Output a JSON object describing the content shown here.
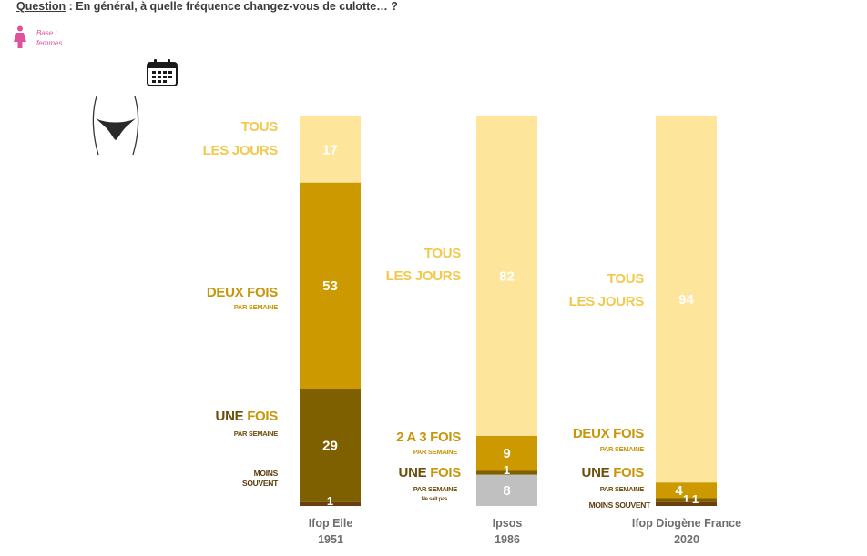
{
  "header": {
    "question_label": "Question",
    "question_text": " : En général, à quelle fréquence changez-vous de culotte… ?",
    "base_line1": "Base :",
    "base_line2": "femmes"
  },
  "icons": [
    "woman-icon",
    "calendar-icon",
    "underwear-icon"
  ],
  "labels": {
    "tous": "TOUS",
    "les_jours": "LES JOURS",
    "deux_fois": "DEUX FOIS",
    "par_semaine": "PAR SEMAINE",
    "une": "UNE ",
    "fois": "FOIS",
    "moins": "MOINS",
    "souvent": "SOUVENT",
    "moins_souvent": "MOINS SOUVENT",
    "deux_trois_fois": "2 A 3 FOIS",
    "ne_sait_pas": "Ne sait pas"
  },
  "colors": {
    "tous_les_jours": "#fde59b",
    "deux_fois": "#cc9900",
    "une_fois": "#7f6000",
    "moins_souvent": "#6b3f0f",
    "ne_sait_pas": "#c0c0c0"
  },
  "chart_data": {
    "type": "bar",
    "stacked": true,
    "title": "",
    "categories": [
      {
        "line1": "Ifop Elle",
        "line2": "1951"
      },
      {
        "line1": "Ipsos",
        "line2": "1986"
      },
      {
        "line1": "Ifop Diogène France",
        "line2": "2020"
      }
    ],
    "series": [
      {
        "name": "Tous les jours",
        "values": [
          17,
          82,
          94
        ]
      },
      {
        "name": "Deux fois par semaine",
        "values": [
          53,
          null,
          4
        ]
      },
      {
        "name": "2 à 3 fois par semaine",
        "values": [
          null,
          9,
          null
        ]
      },
      {
        "name": "Une fois par semaine",
        "values": [
          29,
          1,
          1
        ]
      },
      {
        "name": "Moins souvent",
        "values": [
          1,
          null,
          1
        ]
      },
      {
        "name": "Ne sait pas",
        "values": [
          null,
          8,
          null
        ]
      }
    ],
    "ylim": [
      0,
      100
    ]
  }
}
